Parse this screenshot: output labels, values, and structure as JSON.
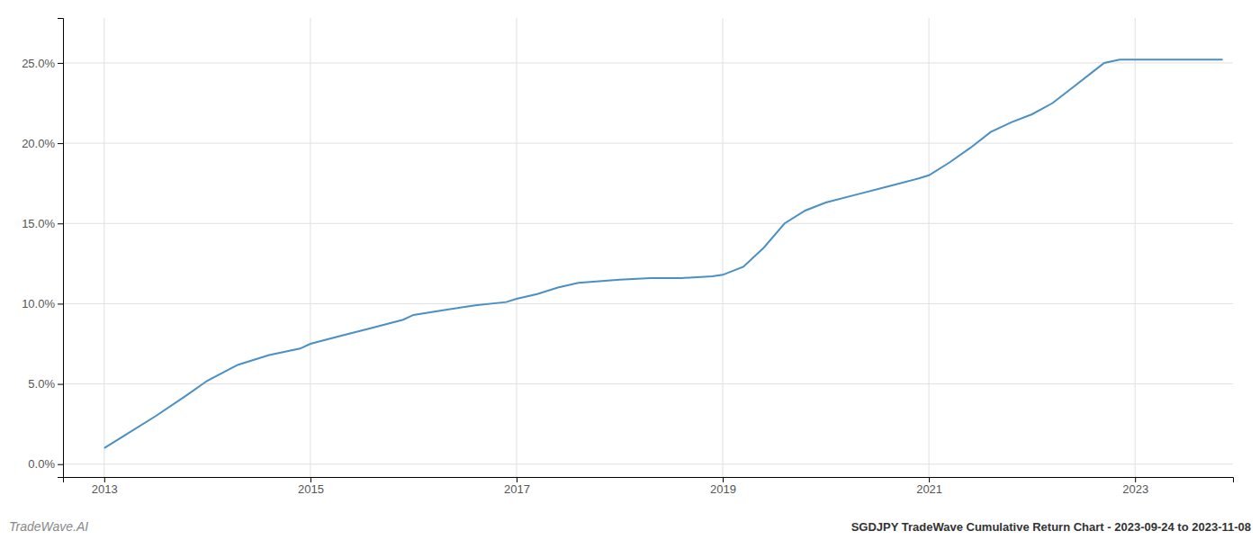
{
  "chart_data": {
    "type": "line",
    "title": "SGDJPY TradeWave Cumulative Return Chart - 2023-09-24 to 2023-11-08",
    "annotations": [
      "TradeWave.AI"
    ],
    "color": "#4a90c4",
    "grid": true,
    "x": [
      2013.0,
      2013.2,
      2013.5,
      2013.8,
      2014.0,
      2014.3,
      2014.6,
      2014.9,
      2015.0,
      2015.3,
      2015.6,
      2015.9,
      2016.0,
      2016.3,
      2016.6,
      2016.9,
      2017.0,
      2017.2,
      2017.4,
      2017.6,
      2017.8,
      2018.0,
      2018.3,
      2018.6,
      2018.9,
      2019.0,
      2019.2,
      2019.4,
      2019.6,
      2019.8,
      2020.0,
      2020.3,
      2020.6,
      2020.9,
      2021.0,
      2021.2,
      2021.4,
      2021.6,
      2021.8,
      2022.0,
      2022.2,
      2022.4,
      2022.6,
      2022.7,
      2022.85,
      2023.0,
      2023.3,
      2023.6,
      2023.85
    ],
    "values": [
      0.01,
      0.018,
      0.03,
      0.043,
      0.052,
      0.062,
      0.068,
      0.072,
      0.075,
      0.08,
      0.085,
      0.09,
      0.093,
      0.096,
      0.099,
      0.101,
      0.103,
      0.106,
      0.11,
      0.113,
      0.114,
      0.115,
      0.116,
      0.116,
      0.117,
      0.118,
      0.123,
      0.135,
      0.15,
      0.158,
      0.163,
      0.168,
      0.173,
      0.178,
      0.18,
      0.188,
      0.197,
      0.207,
      0.213,
      0.218,
      0.225,
      0.235,
      0.245,
      0.25,
      0.252,
      0.252,
      0.252,
      0.252,
      0.252
    ],
    "xlim": [
      2012.6,
      2023.95
    ],
    "ylim": [
      -0.008,
      0.278
    ],
    "xticks": [
      2013,
      2015,
      2017,
      2019,
      2021,
      2023
    ],
    "yticks": [
      {
        "value": 0.0,
        "label": "0.0%"
      },
      {
        "value": 0.05,
        "label": "5.0%"
      },
      {
        "value": 0.1,
        "label": "10.0%"
      },
      {
        "value": 0.15,
        "label": "15.0%"
      },
      {
        "value": 0.2,
        "label": "20.0%"
      },
      {
        "value": 0.25,
        "label": "25.0%"
      }
    ]
  }
}
